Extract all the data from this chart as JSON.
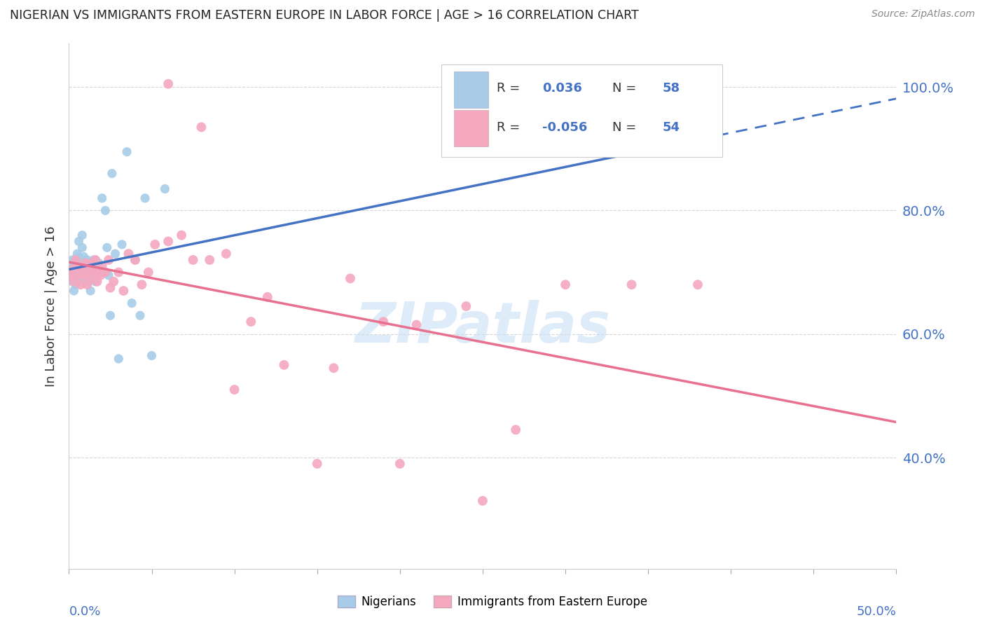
{
  "title": "NIGERIAN VS IMMIGRANTS FROM EASTERN EUROPE IN LABOR FORCE | AGE > 16 CORRELATION CHART",
  "source": "Source: ZipAtlas.com",
  "ylabel": "In Labor Force | Age > 16",
  "xlim": [
    0.0,
    0.5
  ],
  "ylim": [
    0.22,
    1.07
  ],
  "yticks": [
    0.4,
    0.6,
    0.8,
    1.0
  ],
  "ytick_labels": [
    "40.0%",
    "60.0%",
    "80.0%",
    "100.0%"
  ],
  "background_color": "#ffffff",
  "grid_color": "#cccccc",
  "title_color": "#222222",
  "blue_color": "#a8cce8",
  "pink_color": "#f5a8c0",
  "blue_line_color": "#4472c4",
  "pink_line_color": "#e87090",
  "watermark": "ZIPatlas",
  "watermark_color": "#c8dff5",
  "nigerians_R": 0.036,
  "nigerians_N": 58,
  "ee_R": -0.056,
  "ee_N": 54,
  "nig_x": [
    0.001,
    0.001,
    0.002,
    0.002,
    0.002,
    0.003,
    0.003,
    0.003,
    0.003,
    0.004,
    0.004,
    0.004,
    0.004,
    0.005,
    0.005,
    0.005,
    0.005,
    0.006,
    0.006,
    0.006,
    0.006,
    0.007,
    0.007,
    0.007,
    0.008,
    0.008,
    0.009,
    0.009,
    0.01,
    0.01,
    0.011,
    0.011,
    0.012,
    0.013,
    0.013,
    0.014,
    0.015,
    0.016,
    0.017,
    0.018,
    0.019,
    0.02,
    0.021,
    0.022,
    0.023,
    0.024,
    0.025,
    0.026,
    0.028,
    0.03,
    0.032,
    0.035,
    0.038,
    0.04,
    0.043,
    0.046,
    0.05,
    0.058
  ],
  "nig_y": [
    0.695,
    0.71,
    0.685,
    0.7,
    0.72,
    0.67,
    0.69,
    0.7,
    0.715,
    0.68,
    0.695,
    0.705,
    0.72,
    0.685,
    0.7,
    0.715,
    0.73,
    0.695,
    0.71,
    0.725,
    0.75,
    0.69,
    0.705,
    0.72,
    0.74,
    0.76,
    0.71,
    0.725,
    0.695,
    0.715,
    0.7,
    0.72,
    0.685,
    0.67,
    0.71,
    0.695,
    0.72,
    0.685,
    0.7,
    0.715,
    0.7,
    0.82,
    0.7,
    0.8,
    0.74,
    0.695,
    0.63,
    0.86,
    0.73,
    0.56,
    0.745,
    0.895,
    0.65,
    0.72,
    0.63,
    0.82,
    0.565,
    0.835
  ],
  "ee_x": [
    0.001,
    0.002,
    0.003,
    0.004,
    0.005,
    0.006,
    0.007,
    0.008,
    0.009,
    0.01,
    0.011,
    0.012,
    0.013,
    0.014,
    0.015,
    0.016,
    0.017,
    0.018,
    0.019,
    0.02,
    0.022,
    0.024,
    0.025,
    0.027,
    0.03,
    0.033,
    0.036,
    0.04,
    0.044,
    0.048,
    0.052,
    0.06,
    0.068,
    0.075,
    0.085,
    0.095,
    0.11,
    0.13,
    0.15,
    0.17,
    0.19,
    0.21,
    0.24,
    0.27,
    0.3,
    0.34,
    0.38,
    0.06,
    0.08,
    0.1,
    0.12,
    0.16,
    0.2,
    0.25
  ],
  "ee_y": [
    0.695,
    0.705,
    0.685,
    0.72,
    0.695,
    0.71,
    0.68,
    0.7,
    0.695,
    0.715,
    0.68,
    0.705,
    0.69,
    0.715,
    0.7,
    0.72,
    0.685,
    0.7,
    0.695,
    0.71,
    0.7,
    0.72,
    0.675,
    0.685,
    0.7,
    0.67,
    0.73,
    0.72,
    0.68,
    0.7,
    0.745,
    0.75,
    0.76,
    0.72,
    0.72,
    0.73,
    0.62,
    0.55,
    0.39,
    0.69,
    0.62,
    0.615,
    0.645,
    0.445,
    0.68,
    0.68,
    0.68,
    1.005,
    0.935,
    0.51,
    0.66,
    0.545,
    0.39,
    0.33
  ]
}
